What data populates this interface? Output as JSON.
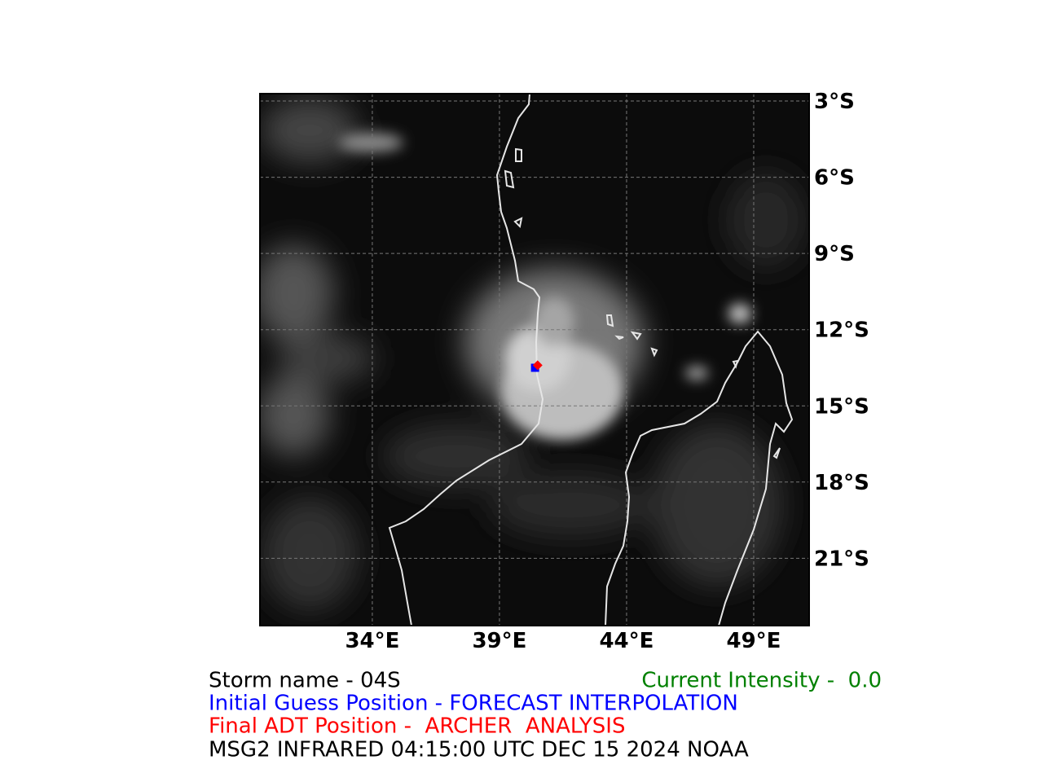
{
  "map": {
    "lon_range": [
      29.58,
      51.18
    ],
    "lat_range": [
      -23.65,
      -2.71
    ],
    "lat_ticks": [
      {
        "value": -3,
        "label": "3°S"
      },
      {
        "value": -6,
        "label": "6°S"
      },
      {
        "value": -9,
        "label": "9°S"
      },
      {
        "value": -12,
        "label": "12°S"
      },
      {
        "value": -15,
        "label": "15°S"
      },
      {
        "value": -18,
        "label": "18°S"
      },
      {
        "value": -21,
        "label": "21°S"
      }
    ],
    "lon_ticks": [
      {
        "value": 34,
        "label": "34°E"
      },
      {
        "value": 39,
        "label": "39°E"
      },
      {
        "value": 44,
        "label": "44°E"
      },
      {
        "value": 49,
        "label": "49°E"
      }
    ],
    "markers": {
      "initial_guess": {
        "lon": 40.4,
        "lat": -13.5,
        "color": "#0000ff"
      },
      "final_adt": {
        "lon": 40.5,
        "lat": -13.4,
        "color": "#ff0000"
      }
    }
  },
  "caption": {
    "storm_name": "Storm name - 04S",
    "current_intensity": "Current Intensity -  0.0",
    "initial_guess": "Initial Guess Position - FORECAST INTERPOLATION",
    "final_adt": "Final ADT Position -  ARCHER  ANALYSIS",
    "source": "MSG2 INFRARED 04:15:00 UTC DEC 15 2024 NOAA"
  }
}
